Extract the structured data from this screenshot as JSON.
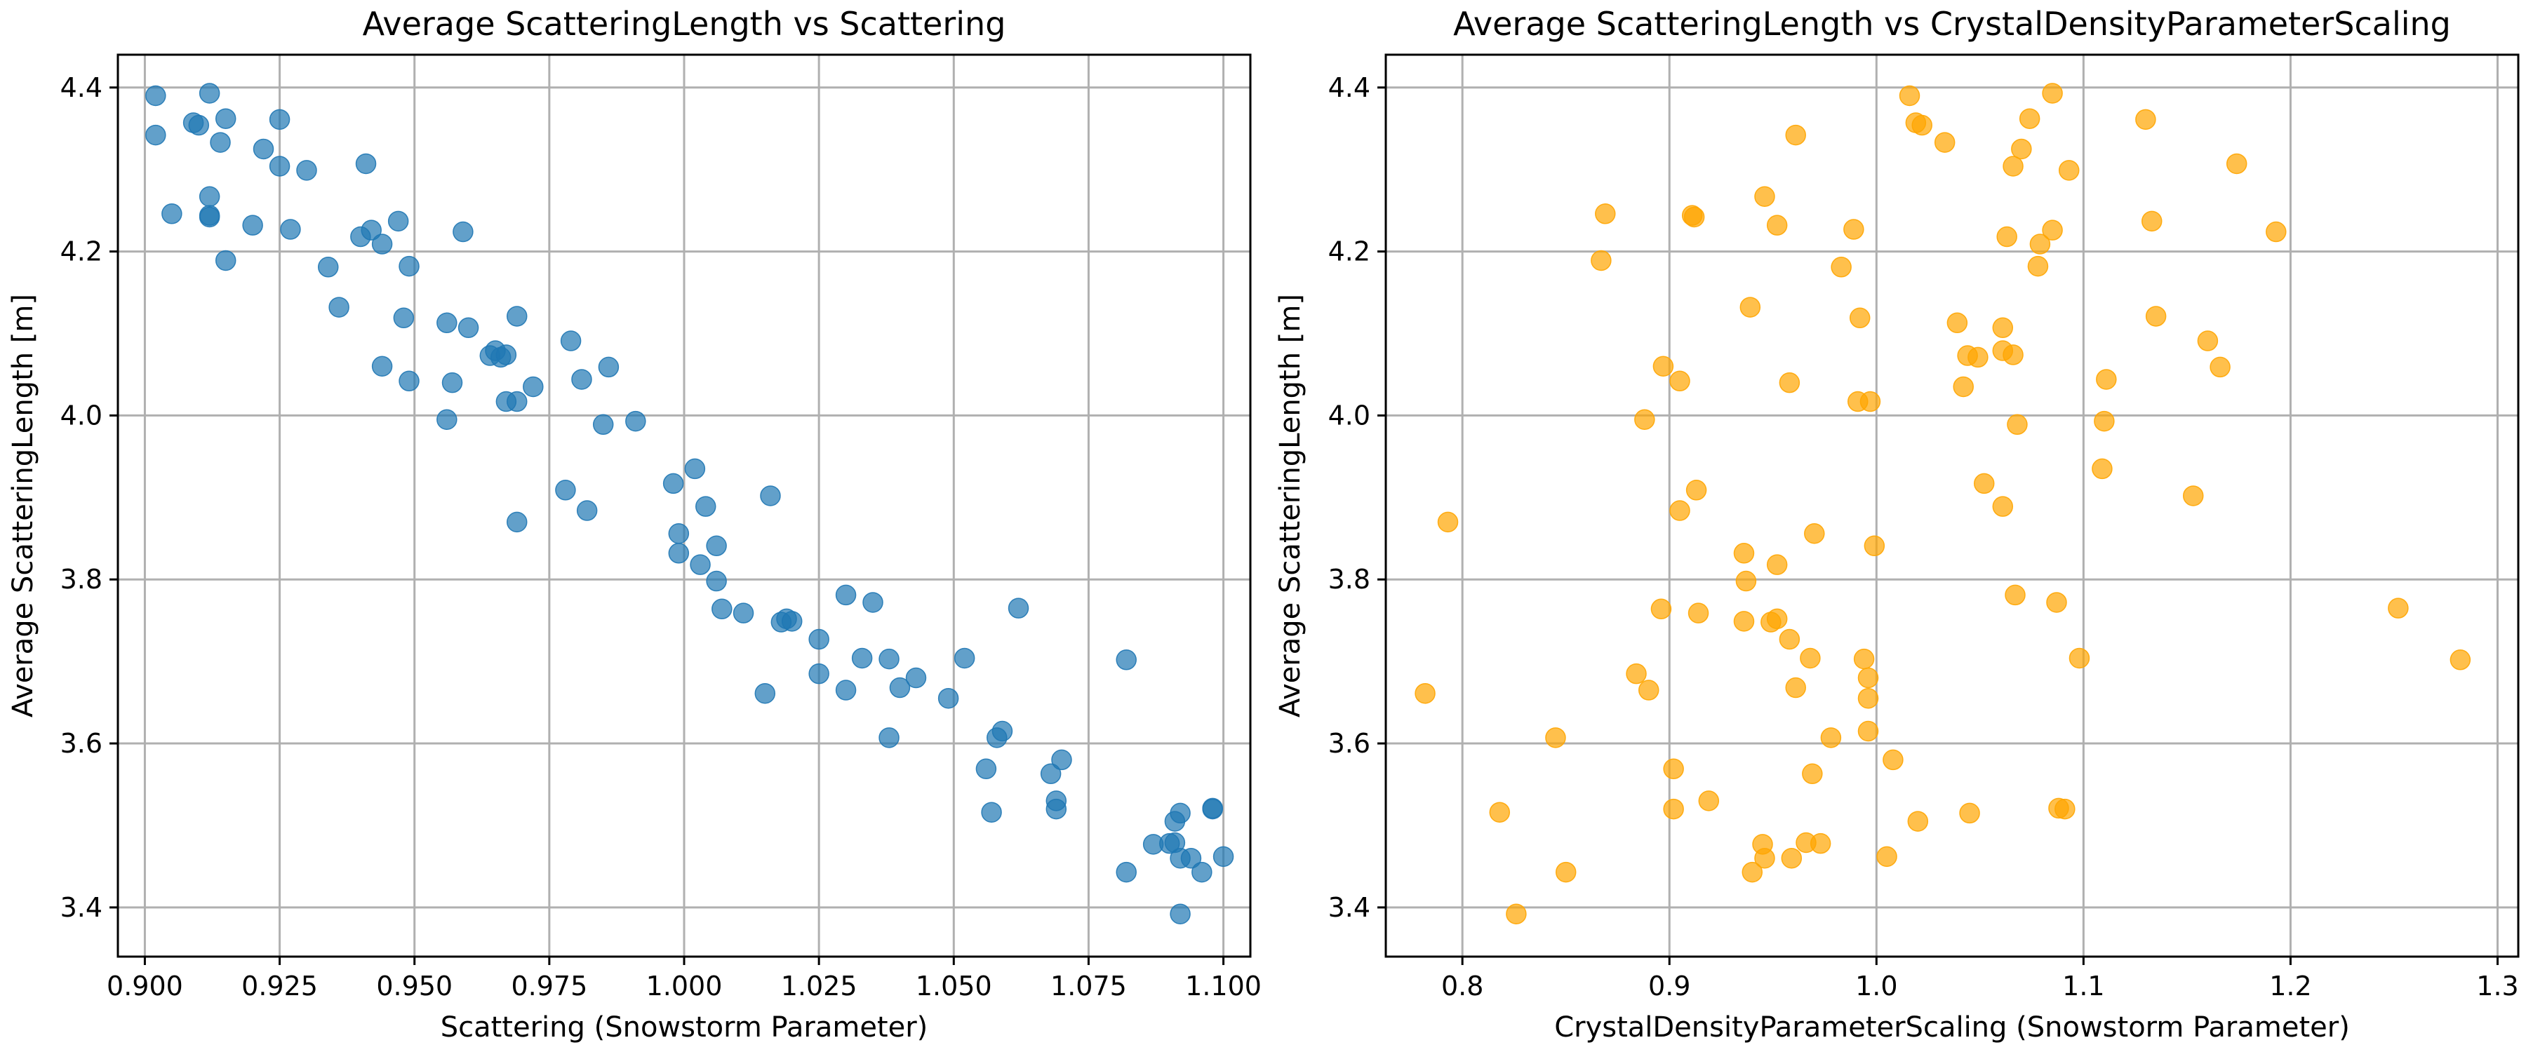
{
  "chart_data": [
    {
      "type": "scatter",
      "title": "Average ScatteringLength vs Scattering",
      "xlabel": "Scattering (Snowstorm Parameter)",
      "ylabel": "Average ScatteringLength [m]",
      "xlim": [
        0.895,
        1.105
      ],
      "ylim": [
        3.34,
        4.44
      ],
      "xticks": [
        0.9,
        0.925,
        0.95,
        0.975,
        1.0,
        1.025,
        1.05,
        1.075,
        1.1
      ],
      "xtick_labels": [
        "0.900",
        "0.925",
        "0.950",
        "0.975",
        "1.000",
        "1.025",
        "1.050",
        "1.075",
        "1.100"
      ],
      "yticks": [
        3.4,
        3.6,
        3.8,
        4.0,
        4.2,
        4.4
      ],
      "ytick_labels": [
        "3.4",
        "3.6",
        "3.8",
        "4.0",
        "4.2",
        "4.4"
      ],
      "grid": true,
      "color": "#1f77b4",
      "points": [
        [
          0.902,
          4.39
        ],
        [
          0.912,
          4.393
        ],
        [
          0.909,
          4.357
        ],
        [
          0.91,
          4.354
        ],
        [
          0.915,
          4.362
        ],
        [
          0.925,
          4.361
        ],
        [
          0.902,
          4.342
        ],
        [
          0.914,
          4.333
        ],
        [
          0.922,
          4.325
        ],
        [
          0.925,
          4.304
        ],
        [
          0.93,
          4.299
        ],
        [
          0.941,
          4.307
        ],
        [
          0.905,
          4.246
        ],
        [
          0.912,
          4.244
        ],
        [
          0.912,
          4.242
        ],
        [
          0.912,
          4.267
        ],
        [
          0.92,
          4.232
        ],
        [
          0.927,
          4.227
        ],
        [
          0.94,
          4.218
        ],
        [
          0.942,
          4.226
        ],
        [
          0.944,
          4.209
        ],
        [
          0.947,
          4.237
        ],
        [
          0.959,
          4.224
        ],
        [
          0.915,
          4.189
        ],
        [
          0.934,
          4.181
        ],
        [
          0.949,
          4.182
        ],
        [
          0.936,
          4.132
        ],
        [
          0.948,
          4.119
        ],
        [
          0.956,
          4.113
        ],
        [
          0.96,
          4.107
        ],
        [
          0.969,
          4.121
        ],
        [
          0.979,
          4.091
        ],
        [
          0.944,
          4.06
        ],
        [
          0.949,
          4.042
        ],
        [
          0.957,
          4.04
        ],
        [
          0.964,
          4.073
        ],
        [
          0.965,
          4.079
        ],
        [
          0.966,
          4.071
        ],
        [
          0.967,
          4.074
        ],
        [
          0.967,
          4.017
        ],
        [
          0.969,
          4.017
        ],
        [
          0.972,
          4.035
        ],
        [
          0.981,
          4.044
        ],
        [
          0.986,
          4.059
        ],
        [
          0.956,
          3.995
        ],
        [
          0.985,
          3.989
        ],
        [
          0.991,
          3.993
        ],
        [
          0.978,
          3.909
        ],
        [
          0.982,
          3.884
        ],
        [
          0.969,
          3.87
        ],
        [
          0.998,
          3.917
        ],
        [
          1.002,
          3.935
        ],
        [
          1.004,
          3.889
        ],
        [
          1.016,
          3.902
        ],
        [
          0.999,
          3.856
        ],
        [
          1.006,
          3.841
        ],
        [
          0.999,
          3.832
        ],
        [
          1.003,
          3.818
        ],
        [
          1.006,
          3.798
        ],
        [
          1.007,
          3.764
        ],
        [
          1.011,
          3.759
        ],
        [
          1.018,
          3.748
        ],
        [
          1.019,
          3.752
        ],
        [
          1.02,
          3.749
        ],
        [
          1.03,
          3.781
        ],
        [
          1.035,
          3.772
        ],
        [
          1.062,
          3.765
        ],
        [
          1.025,
          3.727
        ],
        [
          1.033,
          3.704
        ],
        [
          1.038,
          3.703
        ],
        [
          1.052,
          3.704
        ],
        [
          1.082,
          3.702
        ],
        [
          1.025,
          3.685
        ],
        [
          1.043,
          3.68
        ],
        [
          1.015,
          3.661
        ],
        [
          1.03,
          3.665
        ],
        [
          1.04,
          3.668
        ],
        [
          1.049,
          3.655
        ],
        [
          1.038,
          3.607
        ],
        [
          1.059,
          3.615
        ],
        [
          1.058,
          3.607
        ],
        [
          1.056,
          3.569
        ],
        [
          1.068,
          3.563
        ],
        [
          1.07,
          3.58
        ],
        [
          1.069,
          3.53
        ],
        [
          1.069,
          3.52
        ],
        [
          1.057,
          3.516
        ],
        [
          1.092,
          3.515
        ],
        [
          1.098,
          3.521
        ],
        [
          1.098,
          3.52
        ],
        [
          1.091,
          3.505
        ],
        [
          1.087,
          3.477
        ],
        [
          1.09,
          3.478
        ],
        [
          1.091,
          3.479
        ],
        [
          1.092,
          3.46
        ],
        [
          1.094,
          3.46
        ],
        [
          1.1,
          3.462
        ],
        [
          1.082,
          3.443
        ],
        [
          1.096,
          3.443
        ],
        [
          1.092,
          3.392
        ]
      ]
    },
    {
      "type": "scatter",
      "title": "Average ScatteringLength vs CrystalDensityParameterScaling",
      "xlabel": "CrystalDensityParameterScaling (Snowstorm Parameter)",
      "ylabel": "Average ScatteringLength [m]",
      "xlim": [
        0.763,
        1.31
      ],
      "ylim": [
        3.34,
        4.44
      ],
      "xticks": [
        0.8,
        0.9,
        1.0,
        1.1,
        1.2,
        1.3
      ],
      "xtick_labels": [
        "0.8",
        "0.9",
        "1.0",
        "1.1",
        "1.2",
        "1.3"
      ],
      "yticks": [
        3.4,
        3.6,
        3.8,
        4.0,
        4.2,
        4.4
      ],
      "ytick_labels": [
        "3.4",
        "3.6",
        "3.8",
        "4.0",
        "4.2",
        "4.4"
      ],
      "grid": true,
      "color": "#ffa500",
      "points": [
        [
          1.016,
          4.39
        ],
        [
          1.085,
          4.393
        ],
        [
          1.019,
          4.357
        ],
        [
          1.022,
          4.354
        ],
        [
          1.074,
          4.362
        ],
        [
          1.13,
          4.361
        ],
        [
          0.961,
          4.342
        ],
        [
          1.033,
          4.333
        ],
        [
          1.07,
          4.325
        ],
        [
          1.066,
          4.304
        ],
        [
          1.093,
          4.299
        ],
        [
          1.174,
          4.307
        ],
        [
          0.869,
          4.246
        ],
        [
          0.911,
          4.244
        ],
        [
          0.912,
          4.242
        ],
        [
          0.946,
          4.267
        ],
        [
          0.952,
          4.232
        ],
        [
          0.989,
          4.227
        ],
        [
          1.063,
          4.218
        ],
        [
          1.085,
          4.226
        ],
        [
          1.079,
          4.209
        ],
        [
          1.133,
          4.237
        ],
        [
          1.193,
          4.224
        ],
        [
          0.867,
          4.189
        ],
        [
          0.983,
          4.181
        ],
        [
          1.078,
          4.182
        ],
        [
          0.939,
          4.132
        ],
        [
          0.992,
          4.119
        ],
        [
          1.039,
          4.113
        ],
        [
          1.061,
          4.107
        ],
        [
          1.135,
          4.121
        ],
        [
          1.16,
          4.091
        ],
        [
          0.897,
          4.06
        ],
        [
          0.905,
          4.042
        ],
        [
          0.958,
          4.04
        ],
        [
          1.044,
          4.073
        ],
        [
          1.061,
          4.079
        ],
        [
          1.049,
          4.071
        ],
        [
          1.066,
          4.074
        ],
        [
          0.991,
          4.017
        ],
        [
          0.997,
          4.017
        ],
        [
          1.042,
          4.035
        ],
        [
          1.111,
          4.044
        ],
        [
          1.166,
          4.059
        ],
        [
          0.888,
          3.995
        ],
        [
          1.068,
          3.989
        ],
        [
          1.11,
          3.993
        ],
        [
          0.913,
          3.909
        ],
        [
          0.905,
          3.884
        ],
        [
          0.793,
          3.87
        ],
        [
          1.052,
          3.917
        ],
        [
          1.109,
          3.935
        ],
        [
          1.061,
          3.889
        ],
        [
          1.153,
          3.902
        ],
        [
          0.97,
          3.856
        ],
        [
          0.999,
          3.841
        ],
        [
          0.936,
          3.832
        ],
        [
          0.952,
          3.818
        ],
        [
          0.937,
          3.798
        ],
        [
          0.896,
          3.764
        ],
        [
          0.914,
          3.759
        ],
        [
          0.949,
          3.748
        ],
        [
          0.952,
          3.752
        ],
        [
          0.936,
          3.749
        ],
        [
          1.067,
          3.781
        ],
        [
          1.087,
          3.772
        ],
        [
          1.252,
          3.765
        ],
        [
          0.958,
          3.727
        ],
        [
          0.968,
          3.704
        ],
        [
          0.994,
          3.703
        ],
        [
          1.098,
          3.704
        ],
        [
          1.282,
          3.702
        ],
        [
          0.884,
          3.685
        ],
        [
          0.996,
          3.68
        ],
        [
          0.782,
          3.661
        ],
        [
          0.89,
          3.665
        ],
        [
          0.961,
          3.668
        ],
        [
          0.996,
          3.655
        ],
        [
          0.845,
          3.607
        ],
        [
          0.996,
          3.615
        ],
        [
          0.978,
          3.607
        ],
        [
          0.902,
          3.569
        ],
        [
          0.969,
          3.563
        ],
        [
          1.008,
          3.58
        ],
        [
          0.919,
          3.53
        ],
        [
          0.902,
          3.52
        ],
        [
          0.818,
          3.516
        ],
        [
          1.045,
          3.515
        ],
        [
          1.088,
          3.521
        ],
        [
          1.091,
          3.52
        ],
        [
          1.02,
          3.505
        ],
        [
          0.945,
          3.477
        ],
        [
          0.973,
          3.478
        ],
        [
          0.966,
          3.479
        ],
        [
          0.946,
          3.46
        ],
        [
          0.959,
          3.46
        ],
        [
          1.005,
          3.462
        ],
        [
          0.85,
          3.443
        ],
        [
          0.94,
          3.443
        ],
        [
          0.826,
          3.392
        ]
      ]
    }
  ]
}
